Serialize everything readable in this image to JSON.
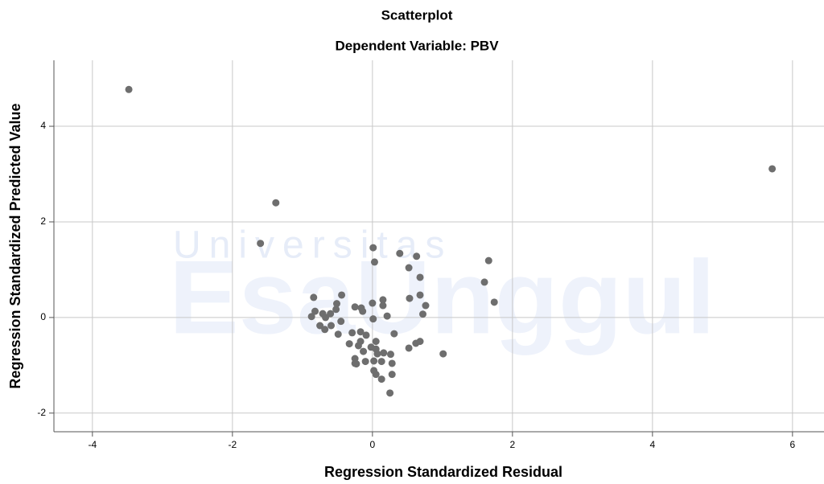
{
  "chart_data": {
    "type": "scatter",
    "title": "Scatterplot",
    "subtitle": "Dependent Variable: PBV",
    "x_label": "Regression Standardized Residual",
    "y_label": "Regression Standardized Predicted Value",
    "watermark": [
      "Universitas",
      "EsaUnggul"
    ],
    "color": "#6e6e6e",
    "grid": true,
    "xlim": [
      -4.55,
      6.45
    ],
    "ylim": [
      -2.39,
      5.38
    ],
    "xticks": [
      -4,
      -2,
      0,
      2,
      4,
      6
    ],
    "yticks": [
      -2,
      0,
      2,
      4
    ],
    "x": [
      -3.48,
      5.71,
      -1.38,
      -1.6,
      0.01,
      0.03,
      0.39,
      0.63,
      0.52,
      0.68,
      1.66,
      1.6,
      1.74,
      0.53,
      0.68,
      0.76,
      0.72,
      0.15,
      0.15,
      0.0,
      0.21,
      0.01,
      -0.44,
      -0.84,
      -0.51,
      -0.52,
      -0.82,
      -0.87,
      -0.71,
      -0.6,
      -0.67,
      -0.75,
      -0.68,
      -0.59,
      -0.49,
      -0.45,
      -0.25,
      -0.16,
      -0.14,
      -0.29,
      -0.17,
      -0.09,
      -0.17,
      -0.33,
      -0.2,
      -0.13,
      -0.02,
      0.05,
      0.05,
      0.07,
      0.16,
      0.26,
      0.31,
      0.52,
      0.62,
      0.68,
      1.01,
      -0.25,
      -0.23,
      -0.1,
      0.02,
      0.13,
      0.28,
      0.02,
      0.05,
      0.13,
      0.28,
      0.25,
      -0.25
    ],
    "values": [
      4.77,
      3.11,
      2.4,
      1.55,
      1.46,
      1.16,
      1.34,
      1.28,
      1.04,
      0.84,
      1.19,
      0.74,
      0.32,
      0.4,
      0.47,
      0.25,
      0.07,
      0.37,
      0.25,
      0.3,
      0.03,
      -0.03,
      0.47,
      0.42,
      0.29,
      0.17,
      0.13,
      0.02,
      0.08,
      0.08,
      0.0,
      -0.17,
      -0.25,
      -0.17,
      -0.35,
      -0.08,
      0.22,
      0.2,
      0.13,
      -0.32,
      -0.3,
      -0.37,
      -0.5,
      -0.55,
      -0.59,
      -0.71,
      -0.62,
      -0.5,
      -0.66,
      -0.76,
      -0.74,
      -0.77,
      -0.34,
      -0.64,
      -0.54,
      -0.5,
      -0.76,
      -0.86,
      -0.97,
      -0.92,
      -0.91,
      -0.92,
      -0.96,
      -1.11,
      -1.19,
      -1.29,
      -1.19,
      -1.58,
      -0.96
    ]
  }
}
